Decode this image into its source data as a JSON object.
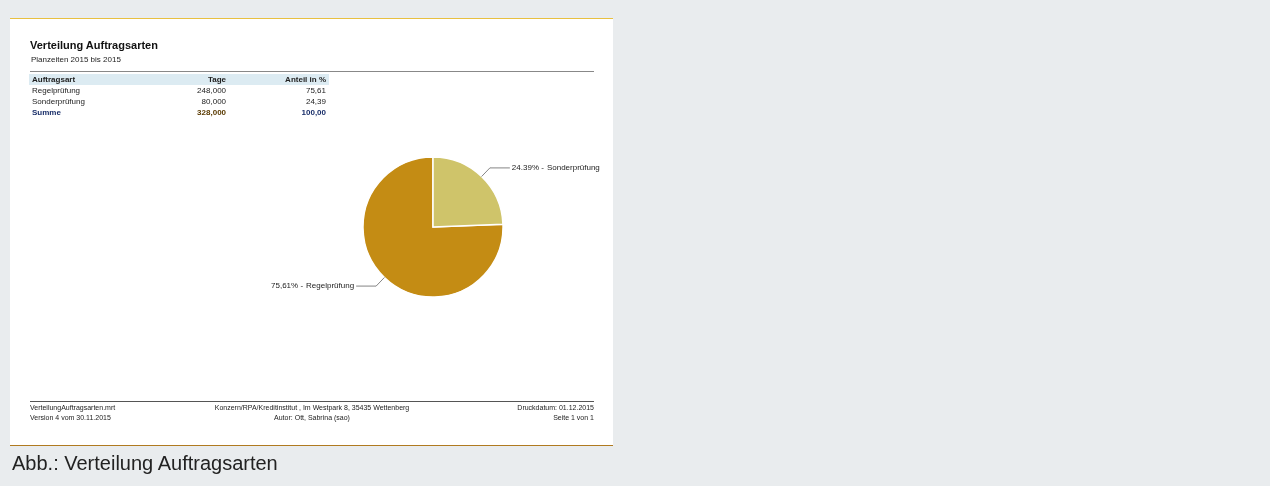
{
  "chart_data": {
    "type": "pie",
    "title": "Verteilung Auftragsarten",
    "subtitle": "Planzeiten 2015 bis 2015",
    "categories": [
      "Regelprüfung",
      "Sonderprüfung"
    ],
    "values": [
      75.61,
      24.39
    ],
    "colors": [
      "#c48c14",
      "#cfc46a"
    ],
    "value_labels": [
      "75,61% -",
      "24.39% -"
    ],
    "annotations": [
      "Auftragsart",
      "Tage",
      "Anteil in %",
      "Regelprüfung",
      "248,000",
      "75,61",
      "Sonderprüfung",
      "80,000",
      "24,39",
      "Summe",
      "328,000",
      "100,00",
      "VerteilungAuftragsarten.mrt",
      "Version 4 vom 30.11.2015",
      "Konzern/RPA/Kreditinstitut , Im Westpark 8, 35435 Wettenberg",
      "Autor: Ott, Sabrina (sao)",
      "Druckdatum: 01.12.2015",
      "Seite 1 von 1",
      "Abb.: Verteilung Auftragsarten"
    ]
  }
}
